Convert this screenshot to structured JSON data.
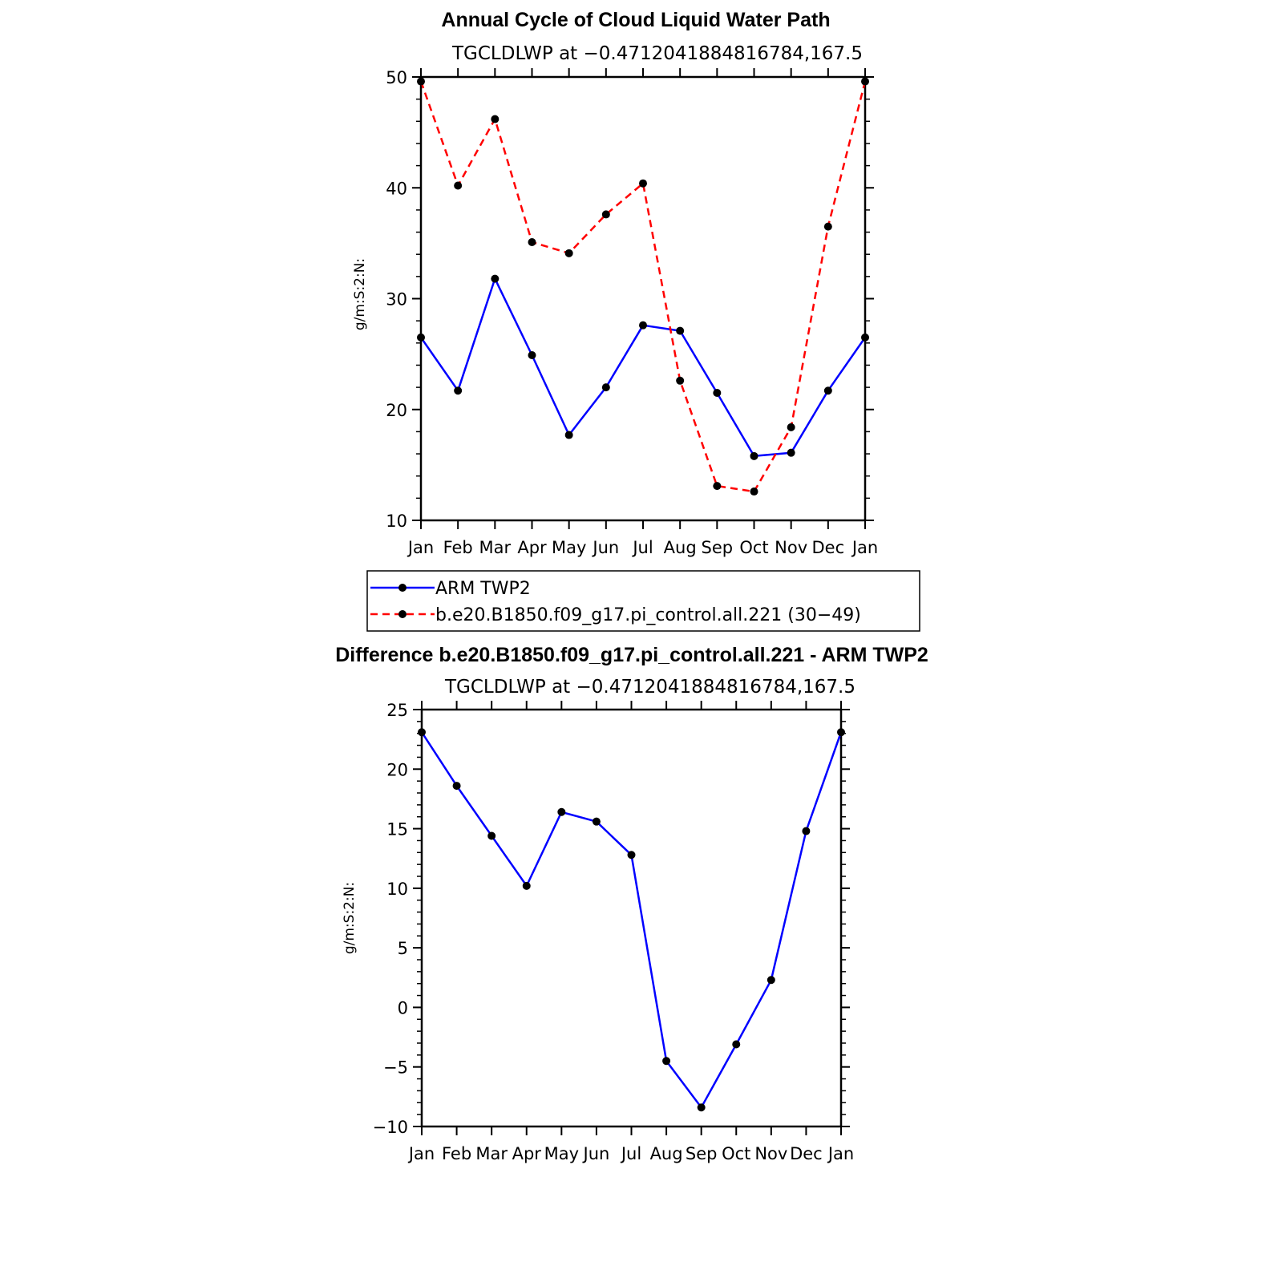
{
  "chart_data": [
    {
      "type": "line",
      "title": "Annual Cycle of Cloud Liquid Water Path",
      "subtitle": "TGCLDLWP at −0.4712041884816784,167.5",
      "ylabel": "g/m:S:2:N:",
      "xlabel": "",
      "ylim": [
        10,
        50
      ],
      "yticks": [
        "10",
        "20",
        "30",
        "40",
        "50"
      ],
      "categories": [
        "Jan",
        "Feb",
        "Mar",
        "Apr",
        "May",
        "Jun",
        "Jul",
        "Aug",
        "Sep",
        "Oct",
        "Nov",
        "Dec",
        "Jan"
      ],
      "series": [
        {
          "name": "ARM TWP2",
          "color": "#0000ff",
          "style": "solid",
          "values": [
            26.5,
            21.7,
            31.8,
            24.9,
            17.7,
            22.0,
            27.6,
            27.1,
            21.5,
            15.8,
            16.1,
            21.7,
            26.5
          ]
        },
        {
          "name": "b.e20.B1850.f09_g17.pi_control.all.221 (30−49)",
          "color": "#ff0000",
          "style": "dashed",
          "values": [
            49.6,
            40.2,
            46.2,
            35.1,
            34.1,
            37.6,
            40.4,
            22.6,
            13.1,
            12.6,
            18.4,
            36.5,
            49.6
          ]
        }
      ]
    },
    {
      "type": "line",
      "title": "Difference b.e20.B1850.f09_g17.pi_control.all.221 - ARM TWP2",
      "subtitle": "TGCLDLWP at −0.4712041884816784,167.5",
      "ylabel": "g/m:S:2:N:",
      "xlabel": "",
      "ylim": [
        -10,
        25
      ],
      "yticks": [
        "−10",
        "−5",
        "0",
        "5",
        "10",
        "15",
        "20",
        "25"
      ],
      "categories": [
        "Jan",
        "Feb",
        "Mar",
        "Apr",
        "May",
        "Jun",
        "Jul",
        "Aug",
        "Sep",
        "Oct",
        "Nov",
        "Dec",
        "Jan"
      ],
      "series": [
        {
          "name": "Difference",
          "color": "#0000ff",
          "style": "solid",
          "values": [
            23.1,
            18.6,
            14.4,
            10.2,
            16.4,
            15.6,
            12.8,
            -4.5,
            -8.4,
            -3.1,
            2.3,
            14.8,
            23.1
          ]
        }
      ]
    }
  ]
}
